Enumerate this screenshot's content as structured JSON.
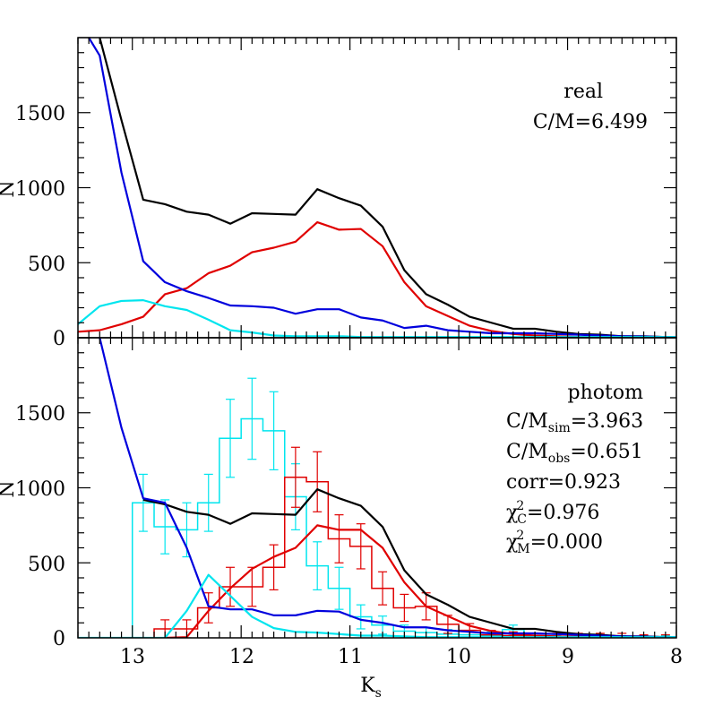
{
  "chart_data": [
    {
      "type": "line",
      "panel": "top",
      "annotations": [
        "real",
        "C/M=6.499"
      ],
      "ylabel": "N",
      "xlabel": "",
      "xlim": [
        13.5,
        8
      ],
      "ylim": [
        0,
        2000
      ],
      "y_ticks": [
        0,
        500,
        1000,
        1500
      ],
      "y_tick_labels": [
        "0",
        "500",
        "1000",
        "1500"
      ],
      "grid": false,
      "series": [
        {
          "color": "#000000",
          "x": [
            13.3,
            13.1,
            12.9,
            12.7,
            12.5,
            12.3,
            12.1,
            11.9,
            11.7,
            11.5,
            11.3,
            11.1,
            10.9,
            10.7,
            10.5,
            10.3,
            10.1,
            9.9,
            9.7,
            9.5,
            9.3,
            9.1,
            8.9,
            8.7,
            8.5,
            8.3,
            8.1,
            8.0
          ],
          "values": [
            2000,
            1450,
            920,
            890,
            840,
            820,
            760,
            830,
            825,
            820,
            990,
            930,
            880,
            740,
            450,
            290,
            220,
            140,
            100,
            60,
            60,
            40,
            25,
            20,
            10,
            10,
            5,
            5
          ]
        },
        {
          "color": "#e00000",
          "x": [
            13.5,
            13.3,
            13.1,
            12.9,
            12.7,
            12.5,
            12.3,
            12.1,
            11.9,
            11.7,
            11.5,
            11.3,
            11.1,
            10.9,
            10.7,
            10.5,
            10.3,
            10.1,
            9.9,
            9.7,
            9.5,
            9.3,
            9.1,
            8.9,
            8.7,
            8.5,
            8.3,
            8.1,
            8.0
          ],
          "values": [
            40,
            50,
            90,
            140,
            290,
            330,
            430,
            480,
            570,
            600,
            640,
            770,
            720,
            725,
            610,
            370,
            210,
            145,
            80,
            45,
            25,
            15,
            10,
            5,
            3,
            2,
            1,
            0,
            0
          ]
        },
        {
          "color": "#0000dd",
          "x": [
            13.4,
            13.3,
            13.1,
            12.9,
            12.7,
            12.5,
            12.3,
            12.1,
            11.9,
            11.7,
            11.5,
            11.3,
            11.1,
            10.9,
            10.7,
            10.5,
            10.3,
            10.1,
            9.9,
            9.7,
            9.5,
            9.3,
            9.1,
            8.9,
            8.7,
            8.5,
            8.3,
            8.1,
            8.0
          ],
          "values": [
            2000,
            1880,
            1100,
            510,
            370,
            310,
            265,
            215,
            210,
            200,
            160,
            190,
            190,
            135,
            115,
            65,
            80,
            50,
            40,
            30,
            30,
            30,
            25,
            20,
            15,
            10,
            8,
            5,
            5
          ]
        },
        {
          "color": "#00e5ee",
          "x": [
            13.5,
            13.3,
            13.1,
            12.9,
            12.7,
            12.5,
            12.3,
            12.1,
            11.9,
            11.7,
            11.5,
            11.3,
            11.1,
            10.9,
            10.7,
            10.5,
            10.3,
            10.1,
            9.9,
            9.7,
            9.5,
            9.3,
            9.1,
            8.9,
            8.7,
            8.5,
            8.3,
            8.1,
            8.0
          ],
          "values": [
            90,
            210,
            245,
            250,
            210,
            185,
            120,
            50,
            35,
            15,
            10,
            10,
            10,
            5,
            5,
            5,
            5,
            5,
            5,
            5,
            5,
            5,
            5,
            5,
            5,
            5,
            5,
            5,
            5
          ]
        }
      ]
    },
    {
      "type": "line",
      "panel": "bottom",
      "annotations": [
        "photom",
        "C/M",
        "sim",
        "=3.963",
        "C/M",
        "obs",
        "=0.651",
        "corr=0.923",
        "χ",
        "2",
        "C",
        "=0.976",
        "χ",
        "2",
        "M",
        "=0.000"
      ],
      "ylabel": "N",
      "xlabel": "K",
      "xlabel_sub": "s",
      "xlim": [
        13.5,
        8
      ],
      "ylim": [
        0,
        2000
      ],
      "x_ticks": [
        13,
        12,
        11,
        10,
        9,
        8
      ],
      "x_tick_labels": [
        "13",
        "12",
        "11",
        "10",
        "9",
        "8"
      ],
      "y_ticks": [
        0,
        500,
        1000,
        1500
      ],
      "y_tick_labels": [
        "0",
        "500",
        "1000",
        "1500"
      ],
      "grid": false,
      "series": [
        {
          "color": "#000000",
          "x": [
            12.9,
            12.7,
            12.5,
            12.3,
            12.1,
            11.9,
            11.7,
            11.5,
            11.3,
            11.1,
            10.9,
            10.7,
            10.5,
            10.3,
            10.1,
            9.9,
            9.7,
            9.5,
            9.3,
            9.1,
            8.9,
            8.7,
            8.5,
            8.3,
            8.1,
            8.0
          ],
          "values": [
            920,
            890,
            840,
            820,
            760,
            830,
            825,
            820,
            990,
            930,
            880,
            740,
            450,
            290,
            220,
            140,
            100,
            60,
            60,
            40,
            25,
            20,
            10,
            10,
            5,
            5
          ]
        },
        {
          "color": "#e00000",
          "x": [
            12.7,
            12.5,
            12.3,
            12.1,
            11.9,
            11.7,
            11.5,
            11.3,
            11.1,
            10.9,
            10.7,
            10.5,
            10.3,
            10.1,
            9.9,
            9.7,
            9.5,
            9.3,
            9.1,
            8.9,
            8.7,
            8.5,
            8.3,
            8.1,
            8.0
          ],
          "values": [
            0,
            5,
            180,
            330,
            460,
            540,
            600,
            750,
            720,
            720,
            600,
            370,
            210,
            145,
            80,
            45,
            25,
            15,
            10,
            5,
            3,
            2,
            1,
            0,
            0
          ]
        },
        {
          "color": "#0000dd",
          "x": [
            13.3,
            13.1,
            12.9,
            12.7,
            12.5,
            12.3,
            12.1,
            11.9,
            11.7,
            11.5,
            11.3,
            11.1,
            10.9,
            10.7,
            10.5,
            10.3,
            10.1,
            9.9,
            9.7,
            9.5,
            9.3,
            9.1,
            8.9,
            8.7,
            8.5,
            8.3,
            8.1,
            8.0
          ],
          "values": [
            2000,
            1400,
            930,
            900,
            600,
            210,
            190,
            190,
            150,
            150,
            180,
            175,
            120,
            100,
            70,
            70,
            50,
            40,
            30,
            30,
            30,
            25,
            20,
            15,
            10,
            8,
            5,
            5
          ]
        },
        {
          "color": "#00e5ee",
          "x": [
            13.5,
            12.7,
            12.5,
            12.3,
            12.1,
            11.9,
            11.7,
            11.5,
            11.3,
            11.1,
            10.9,
            10.7,
            10.5,
            10.3,
            10.1,
            9.9,
            9.7,
            9.5,
            9.3,
            9.1,
            8.9,
            8.7,
            8.5,
            8.3,
            8.1,
            8.0
          ],
          "values": [
            0,
            0,
            180,
            420,
            280,
            140,
            65,
            40,
            35,
            25,
            15,
            15,
            10,
            5,
            5,
            5,
            5,
            5,
            5,
            5,
            5,
            5,
            5,
            5,
            5,
            5
          ]
        }
      ],
      "histograms": [
        {
          "color": "#00e5ee",
          "bin_edges": [
            13.5,
            13.0,
            12.8,
            12.6,
            12.4,
            12.2,
            12.0,
            11.8,
            11.6,
            11.4,
            11.2,
            11.0,
            10.8,
            10.6,
            10.4,
            10.2,
            10.0,
            9.8,
            9.6,
            9.4,
            9.2,
            9.0,
            8.8,
            8.6,
            8.4,
            8.2,
            8.0
          ],
          "values": [
            0,
            900,
            740,
            720,
            900,
            1330,
            1460,
            1380,
            940,
            480,
            330,
            140,
            85,
            45,
            35,
            25,
            20,
            15,
            55,
            5,
            5,
            5,
            5,
            5,
            5,
            5
          ],
          "errors": [
            0,
            190,
            180,
            180,
            190,
            260,
            270,
            260,
            220,
            160,
            140,
            80,
            60,
            40,
            35,
            30,
            30,
            25,
            30,
            10,
            10,
            10,
            10,
            10,
            10,
            10
          ]
        },
        {
          "color": "#e00000",
          "bin_edges": [
            12.8,
            12.6,
            12.4,
            12.2,
            12.0,
            11.8,
            11.6,
            11.4,
            11.2,
            11.0,
            10.8,
            10.6,
            10.4,
            10.2,
            10.0,
            9.8,
            9.6,
            9.4,
            9.2,
            9.0,
            8.8,
            8.6,
            8.4,
            8.2,
            8.0
          ],
          "values": [
            60,
            60,
            200,
            340,
            340,
            470,
            1070,
            1040,
            660,
            610,
            330,
            200,
            210,
            90,
            50,
            20,
            15,
            10,
            10,
            10,
            10,
            10,
            5,
            5
          ],
          "errors": [
            60,
            60,
            100,
            130,
            130,
            150,
            200,
            200,
            160,
            150,
            110,
            90,
            90,
            60,
            45,
            30,
            25,
            20,
            20,
            20,
            20,
            20,
            15,
            15
          ]
        }
      ]
    }
  ]
}
